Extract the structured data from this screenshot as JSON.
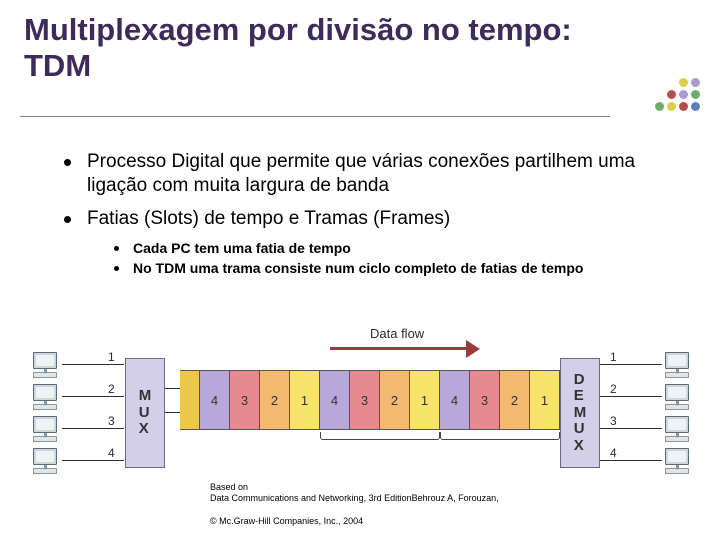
{
  "title": "Multiplexagem por divisão no tempo: TDM",
  "deco_dots": [
    {
      "row": 0,
      "col": 2,
      "color": "#d9cf4a"
    },
    {
      "row": 0,
      "col": 3,
      "color": "#ad9ad1"
    },
    {
      "row": 1,
      "col": 1,
      "color": "#b54d4d"
    },
    {
      "row": 1,
      "col": 2,
      "color": "#ad9ad1"
    },
    {
      "row": 1,
      "col": 3,
      "color": "#6fae6a"
    },
    {
      "row": 2,
      "col": 0,
      "color": "#6fae6a"
    },
    {
      "row": 2,
      "col": 1,
      "color": "#d9cf4a"
    },
    {
      "row": 2,
      "col": 2,
      "color": "#b54d4d"
    },
    {
      "row": 2,
      "col": 3,
      "color": "#5e7dbb"
    }
  ],
  "bullets_level1": [
    "Processo Digital que permite que várias conexões partilhem uma ligação com muita largura de banda",
    "Fatias (Slots) de tempo e Tramas (Frames)"
  ],
  "bullets_level2": [
    "Cada PC tem uma fatia de tempo",
    "No TDM uma trama  consiste num ciclo completo de fatias de tempo"
  ],
  "diagram": {
    "dataflow_label": "Data flow",
    "mux_label": "M\nU\nX",
    "demux_label": "D\nE\nM\nU\nX",
    "left_links": [
      "1",
      "2",
      "3",
      "4"
    ],
    "right_links": [
      "1",
      "2",
      "3",
      "4"
    ],
    "slot_colors": {
      "1": "#f7e36a",
      "2": "#f3b96e",
      "3": "#e78a8f",
      "4": "#b7a8d9"
    },
    "frames": [
      {
        "slots": [
          "4",
          "3",
          "2",
          "1"
        ]
      },
      {
        "slots": [
          "4",
          "3",
          "2",
          "1"
        ]
      },
      {
        "slots": [
          "4",
          "3",
          "2",
          "1"
        ]
      }
    ],
    "brace_left_frame_index": 1,
    "brace_right_frame_index": 2,
    "background_color": "#ffffff",
    "mux_fill": "#d4cfe8"
  },
  "citation": {
    "prefix": "Based on",
    "line": "Data Communications and Networking, 3rd EditionBehrouz A, Forouzan,"
  },
  "copyright": "© Mc.Graw-Hill Companies, Inc., 2004"
}
